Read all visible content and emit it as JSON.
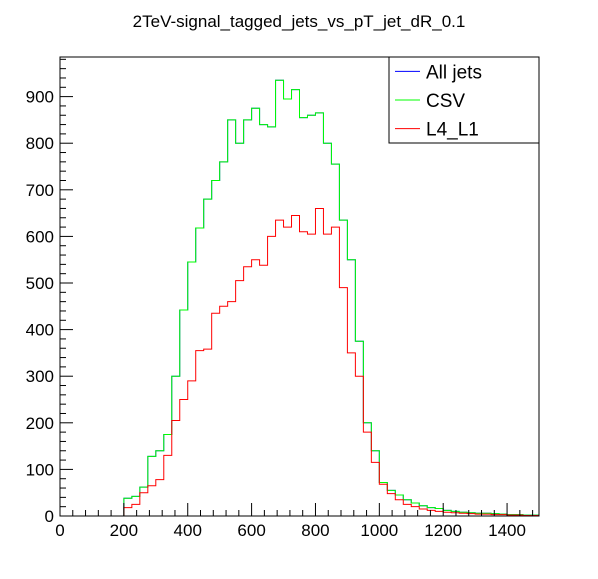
{
  "chart_data": {
    "type": "line",
    "title": "2TeV-signal_tagged_jets_vs_pT_jet_dR_0.1",
    "xlabel": "",
    "ylabel": "",
    "xlim": [
      0,
      1500
    ],
    "ylim": [
      0,
      985
    ],
    "x_ticks": [
      "0",
      "200",
      "400",
      "600",
      "800",
      "1000",
      "1200",
      "1400"
    ],
    "y_ticks": [
      "0",
      "100",
      "200",
      "300",
      "400",
      "500",
      "600",
      "700",
      "800",
      "900"
    ],
    "bin_width": 25,
    "bin_edges_start": 0,
    "legend_position": "top-right",
    "series": [
      {
        "name": "All jets",
        "color": "#0000ff",
        "values": [
          0,
          0,
          0,
          0,
          0,
          0,
          0,
          0,
          38,
          42,
          62,
          128,
          140,
          175,
          300,
          442,
          545,
          618,
          680,
          720,
          760,
          850,
          800,
          850,
          875,
          840,
          835,
          935,
          895,
          915,
          855,
          860,
          865,
          800,
          755,
          635,
          550,
          375,
          200,
          140,
          72,
          55,
          45,
          35,
          28,
          22,
          18,
          16,
          12,
          10,
          8,
          7,
          6,
          6,
          5,
          4,
          3,
          3,
          2,
          2
        ]
      },
      {
        "name": "CSV",
        "color": "#00ff00",
        "values": [
          0,
          0,
          0,
          0,
          0,
          0,
          0,
          0,
          38,
          42,
          62,
          128,
          140,
          175,
          300,
          442,
          545,
          618,
          680,
          720,
          760,
          850,
          800,
          850,
          875,
          840,
          835,
          935,
          895,
          915,
          855,
          860,
          865,
          800,
          755,
          635,
          550,
          375,
          200,
          140,
          72,
          55,
          45,
          35,
          28,
          22,
          18,
          16,
          12,
          10,
          8,
          7,
          6,
          6,
          5,
          4,
          3,
          3,
          2,
          2
        ]
      },
      {
        "name": "L4_L1",
        "color": "#ff0000",
        "values": [
          0,
          0,
          0,
          0,
          0,
          0,
          0,
          0,
          18,
          25,
          50,
          65,
          78,
          130,
          205,
          250,
          290,
          355,
          358,
          435,
          450,
          460,
          505,
          535,
          550,
          538,
          600,
          635,
          620,
          645,
          610,
          605,
          660,
          605,
          620,
          490,
          350,
          300,
          180,
          115,
          68,
          48,
          35,
          25,
          20,
          15,
          12,
          10,
          8,
          7,
          6,
          5,
          4,
          4,
          3,
          3,
          2,
          2,
          1,
          1
        ]
      }
    ]
  }
}
